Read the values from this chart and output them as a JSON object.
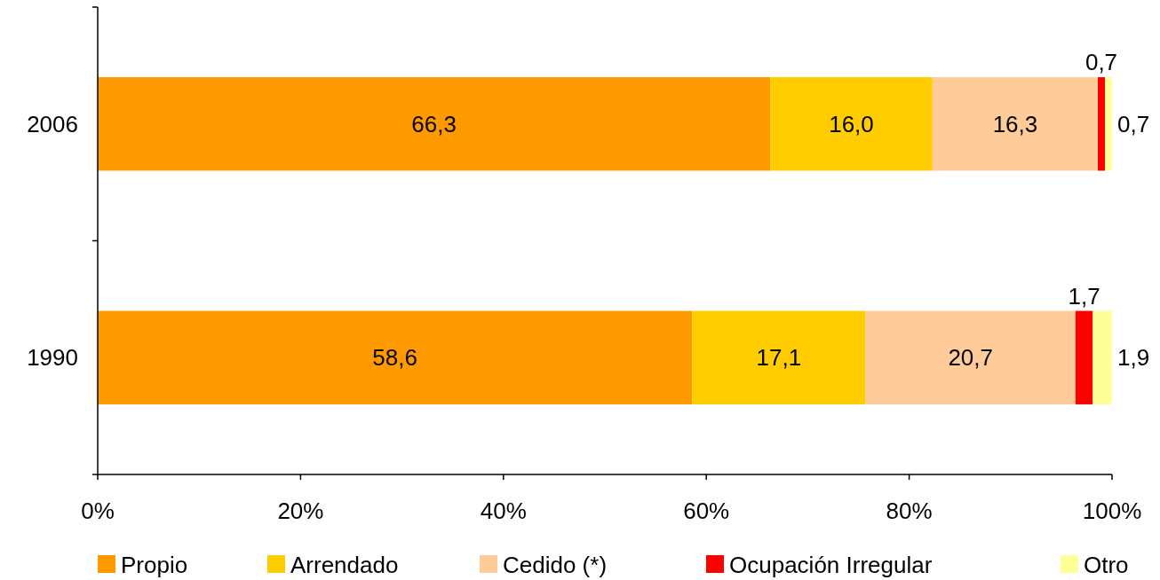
{
  "chart_data": {
    "type": "bar",
    "orientation": "horizontal",
    "stacked": true,
    "categories": [
      "2006",
      "1990"
    ],
    "series": [
      {
        "name": "Propio",
        "color": "#ff9900",
        "values": [
          66.3,
          58.6
        ],
        "value_labels": [
          "66,3",
          "58,6"
        ]
      },
      {
        "name": "Arrendado",
        "color": "#ffcc00",
        "values": [
          16.0,
          17.1
        ],
        "value_labels": [
          "16,0",
          "17,1"
        ]
      },
      {
        "name": "Cedido (*)",
        "color": "#ffcc99",
        "values": [
          16.3,
          20.7
        ],
        "value_labels": [
          "16,3",
          "20,7"
        ]
      },
      {
        "name": "Ocupación Irregular",
        "color": "#ff0000",
        "values": [
          0.7,
          1.7
        ],
        "value_labels": [
          "0,7",
          "1,7"
        ]
      },
      {
        "name": "Otro",
        "color": "#ffff99",
        "values": [
          0.7,
          1.9
        ],
        "value_labels": [
          "0,7",
          "1,9"
        ]
      }
    ],
    "xlim": [
      0,
      100
    ],
    "xticks": [
      {
        "value": 0,
        "label": "0%"
      },
      {
        "value": 20,
        "label": "20%"
      },
      {
        "value": 40,
        "label": "40%"
      },
      {
        "value": 60,
        "label": "60%"
      },
      {
        "value": 80,
        "label": "80%"
      },
      {
        "value": 100,
        "label": "100%"
      }
    ],
    "legend": "bottom"
  }
}
